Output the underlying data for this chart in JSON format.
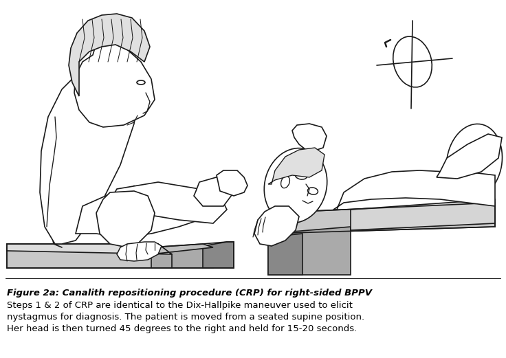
{
  "fig_width": 7.36,
  "fig_height": 5.21,
  "dpi": 100,
  "bg_color": "#ffffff",
  "line_color": "#1a1a1a",
  "gray_light": "#c8c8c8",
  "gray_mid": "#aaaaaa",
  "gray_dark": "#888888",
  "lw": 1.2,
  "title_text": "Figure 2a: Canalith repositioning procedure (CRP) for right-sided BPPV",
  "body_line1": "Steps 1 & 2 of CRP are identical to the Dix-Hallpike maneuver used to elicit",
  "body_line2": "nystagmus for diagnosis. The patient is moved from a seated supine position.",
  "body_line3": "Her head is then turned 45 degrees to the right and held for 15-20 seconds.",
  "title_fontsize": 9.5,
  "body_fontsize": 9.5
}
